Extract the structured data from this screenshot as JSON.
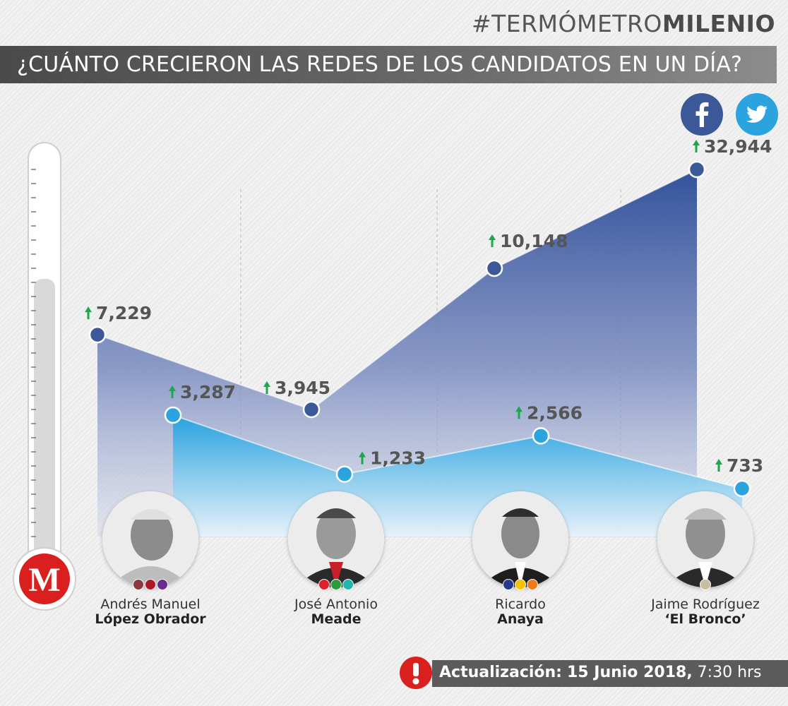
{
  "header": {
    "hashtag_light": "#TERMÓMETRO",
    "hashtag_bold": "MILENIO",
    "title": "¿CUÁNTO CRECIERON LAS REDES DE LOS CANDIDATOS EN UN DÍA?"
  },
  "social_icons": [
    "facebook-icon",
    "twitter-icon"
  ],
  "colors": {
    "facebook": "#3b5998",
    "twitter": "#2aa3df",
    "arrow_up": "#1aa84a",
    "logo_red": "#d9201f",
    "banner": "#5a5a5a"
  },
  "chart_data": {
    "type": "area",
    "categories": [
      "Andrés Manuel López Obrador",
      "José Antonio Meade",
      "Ricardo Anaya",
      "Jaime Rodríguez ‘El Bronco’"
    ],
    "series": [
      {
        "values": [
          7229,
          3945,
          10148,
          32944
        ]
      },
      {
        "values": [
          3287,
          1233,
          2566,
          733
        ]
      }
    ],
    "labels": {
      "facebook": [
        "7,229",
        "3,945",
        "10,148",
        "32,944"
      ],
      "twitter": [
        "3,287",
        "1,233",
        "2,566",
        "733"
      ]
    },
    "legend": "top-right",
    "grid": false
  },
  "candidates": [
    {
      "first": "Andrés Manuel",
      "last": "López Obrador",
      "party_colors": [
        "#8b3a3a",
        "#b0172b",
        "#6a2b8c"
      ]
    },
    {
      "first": "José Antonio",
      "last": "Meade",
      "party_colors": [
        "#e0202a",
        "#2a9a3a",
        "#1fb6b0"
      ]
    },
    {
      "first": "Ricardo",
      "last": "Anaya",
      "party_colors": [
        "#253a8c",
        "#f5c400",
        "#f07a1a"
      ]
    },
    {
      "first": "Jaime Rodríguez",
      "last": "‘El Bronco’",
      "party_colors": [
        "#c9bda0"
      ]
    }
  ],
  "update": {
    "label": "Actualización:",
    "date": "15 Junio 2018,",
    "time": "7:30 hrs"
  }
}
